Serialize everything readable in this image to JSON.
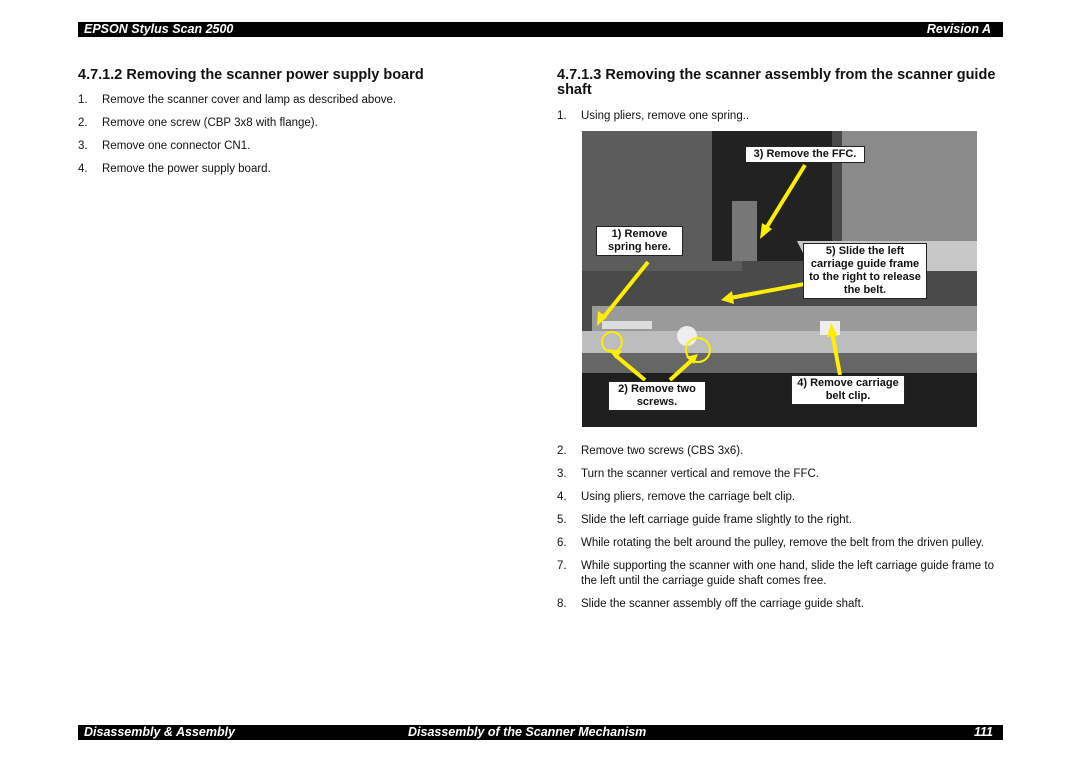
{
  "header": {
    "left": "EPSON Stylus Scan 2500",
    "right": "Revision A"
  },
  "left_section": {
    "heading": "4.7.1.2 Removing the scanner power supply board",
    "steps": [
      {
        "number": "1.",
        "text": "Remove the scanner cover and lamp as described above."
      },
      {
        "number": "2.",
        "text": "Remove one screw (CBP 3x8 with flange)."
      },
      {
        "number": "3.",
        "text": "Remove one connector CN1."
      },
      {
        "number": "4.",
        "text": "Remove the power supply board."
      }
    ]
  },
  "right_section": {
    "heading": "4.7.1.3 Removing the scanner assembly from the scanner guide shaft",
    "steps": [
      {
        "number": "1.",
        "text": "Using pliers, remove one spring.."
      },
      {
        "number": "2.",
        "text": "Remove two screws (CBS 3x6)."
      },
      {
        "number": "3.",
        "text": "Turn the scanner vertical and remove the FFC."
      },
      {
        "number": "4.",
        "text": "Using pliers, remove the carriage belt clip."
      },
      {
        "number": "5.",
        "text": "Slide the left carriage guide frame slightly to the right."
      },
      {
        "number": "6.",
        "text": "While rotating the belt around the pulley, remove the belt from the driven pulley."
      },
      {
        "number": "7.",
        "text": "While supporting the scanner with one hand, slide the left carriage guide frame to the left until the carriage guide shaft comes free."
      },
      {
        "number": "8.",
        "text": "Slide the scanner assembly off the carriage guide shaft."
      }
    ],
    "figure": {
      "callouts": [
        "3) Remove the FFC.",
        "1) Remove spring here.",
        "5) Slide the left carriage guide frame to the right to release the belt.",
        "2) Remove two screws.",
        "4) Remove carriage belt clip."
      ]
    }
  },
  "footer": {
    "left": "Disassembly & Assembly",
    "center": "Disassembly of the Scanner Mechanism",
    "right": "111"
  }
}
